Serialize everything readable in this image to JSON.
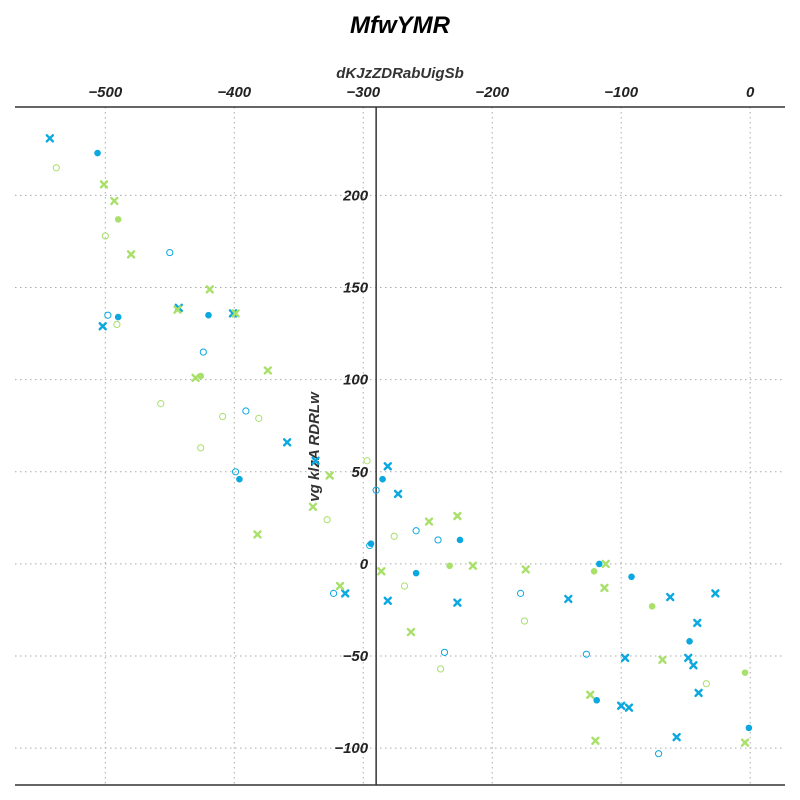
{
  "chart_data": {
    "type": "scatter",
    "title": "MfwYMR",
    "xlabel": "dKJzZDRabUigSb",
    "ylabel": "vg klzA RDRLw",
    "xlim": [
      -570,
      27
    ],
    "ylim": [
      -120,
      248
    ],
    "x_ticks": [
      -500,
      -400,
      -300,
      -200,
      -100,
      0
    ],
    "x_tick_labels": [
      "−500",
      "−400",
      "−300",
      "−200",
      "−100",
      "0"
    ],
    "y_ticks": [
      -100,
      -50,
      0,
      50,
      100,
      150,
      200
    ],
    "y_tick_labels": [
      "−100",
      "−50",
      "0",
      "50",
      "100",
      "150",
      "200"
    ],
    "x_axis_position": "top",
    "y_axis_at_x": -290,
    "grid": true,
    "legend": "none",
    "series": [
      {
        "color": "#0ba8e0",
        "marker": "filled-circle",
        "points": [
          [
            -506,
            223
          ],
          [
            -490,
            134
          ],
          [
            -420,
            135
          ],
          [
            -396,
            46
          ],
          [
            -294,
            11
          ],
          [
            -285,
            46
          ],
          [
            -259,
            -5
          ],
          [
            -225,
            13
          ],
          [
            -117,
            0
          ],
          [
            -92,
            -7
          ],
          [
            -119,
            -74
          ],
          [
            -47,
            -42
          ],
          [
            -1,
            -89
          ]
        ]
      },
      {
        "color": "#0ba8e0",
        "marker": "open-circle",
        "points": [
          [
            -498,
            135
          ],
          [
            -450,
            169
          ],
          [
            -424,
            115
          ],
          [
            -391,
            83
          ],
          [
            -399,
            50
          ],
          [
            -290,
            40
          ],
          [
            -295,
            10
          ],
          [
            -323,
            -16
          ],
          [
            -259,
            18
          ],
          [
            -242,
            13
          ],
          [
            -237,
            -48
          ],
          [
            -178,
            -16
          ],
          [
            -127,
            -49
          ],
          [
            -71,
            -103
          ]
        ]
      },
      {
        "color": "#0ba8e0",
        "marker": "x",
        "points": [
          [
            -543,
            231
          ],
          [
            -443,
            139
          ],
          [
            -502,
            129
          ],
          [
            -401,
            136
          ],
          [
            -359,
            66
          ],
          [
            -337,
            56
          ],
          [
            -281,
            53
          ],
          [
            -273,
            38
          ],
          [
            -314,
            -16
          ],
          [
            -281,
            -20
          ],
          [
            -227,
            -21
          ],
          [
            -141,
            -19
          ],
          [
            -97,
            -51
          ],
          [
            -100,
            -77
          ],
          [
            -94,
            -78
          ],
          [
            -62,
            -18
          ],
          [
            -41,
            -32
          ],
          [
            -27,
            -16
          ],
          [
            -48,
            -51
          ],
          [
            -44,
            -55
          ],
          [
            -40,
            -70
          ],
          [
            -57,
            -94
          ]
        ]
      },
      {
        "color": "#a8e06a",
        "marker": "filled-circle",
        "points": [
          [
            -490,
            187
          ],
          [
            -426,
            102
          ],
          [
            -233,
            -1
          ],
          [
            -121,
            -4
          ],
          [
            -76,
            -23
          ],
          [
            -4,
            -59
          ]
        ]
      },
      {
        "color": "#a8e06a",
        "marker": "open-circle",
        "points": [
          [
            -538,
            215
          ],
          [
            -500,
            178
          ],
          [
            -491,
            130
          ],
          [
            -457,
            87
          ],
          [
            -426,
            63
          ],
          [
            -409,
            80
          ],
          [
            -381,
            79
          ],
          [
            -328,
            24
          ],
          [
            -297,
            56
          ],
          [
            -276,
            15
          ],
          [
            -268,
            -12
          ],
          [
            -240,
            -57
          ],
          [
            -175,
            -31
          ],
          [
            -34,
            -65
          ]
        ]
      },
      {
        "color": "#a8e06a",
        "marker": "x",
        "points": [
          [
            -501,
            206
          ],
          [
            -493,
            197
          ],
          [
            -480,
            168
          ],
          [
            -444,
            138
          ],
          [
            -419,
            149
          ],
          [
            -430,
            101
          ],
          [
            -399,
            136
          ],
          [
            -374,
            105
          ],
          [
            -382,
            16
          ],
          [
            -339,
            31
          ],
          [
            -326,
            48
          ],
          [
            -318,
            -12
          ],
          [
            -249,
            23
          ],
          [
            -227,
            26
          ],
          [
            -286,
            -4
          ],
          [
            -263,
            -37
          ],
          [
            -215,
            -1
          ],
          [
            -174,
            -3
          ],
          [
            -113,
            -13
          ],
          [
            -112,
            0
          ],
          [
            -124,
            -71
          ],
          [
            -120,
            -96
          ],
          [
            -68,
            -52
          ],
          [
            -4,
            -97
          ]
        ]
      }
    ]
  }
}
